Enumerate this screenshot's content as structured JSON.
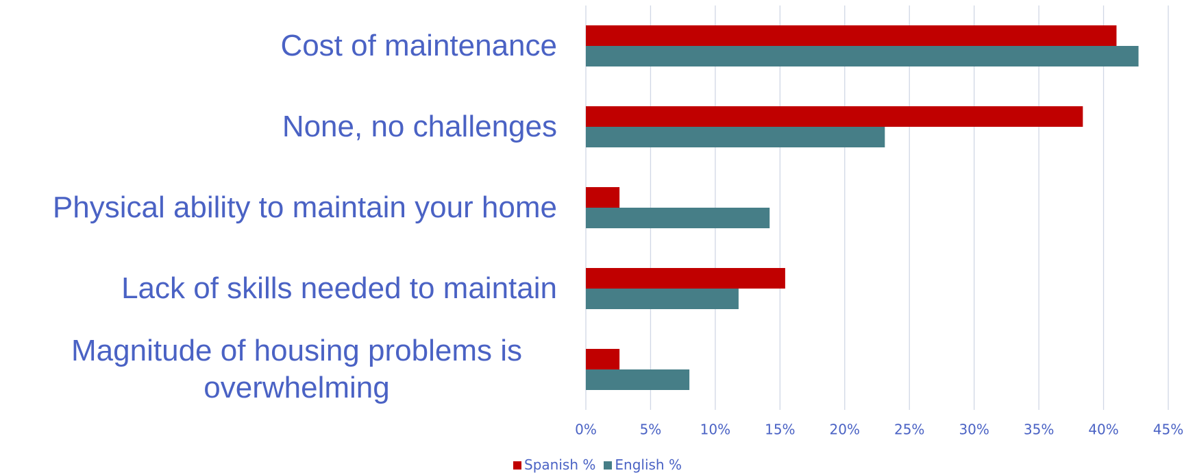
{
  "chart_data": {
    "type": "bar",
    "orientation": "horizontal",
    "categories": [
      "Cost of maintenance",
      "None, no challenges",
      "Physical ability to maintain your home",
      "Lack of skills needed to maintain",
      "Magnitude of housing problems is overwhelming"
    ],
    "series": [
      {
        "name": "Spanish %",
        "color": "#c00000",
        "values": [
          41.0,
          38.4,
          2.6,
          15.4,
          2.6
        ]
      },
      {
        "name": "English %",
        "color": "#467e87",
        "values": [
          42.7,
          23.1,
          14.2,
          11.8,
          8.0
        ]
      }
    ],
    "xlim": [
      0,
      45
    ],
    "xticks": [
      {
        "value": 0,
        "label": "0%"
      },
      {
        "value": 5,
        "label": "5%"
      },
      {
        "value": 10,
        "label": "10%"
      },
      {
        "value": 15,
        "label": "15%"
      },
      {
        "value": 20,
        "label": "20%"
      },
      {
        "value": 25,
        "label": "25%"
      },
      {
        "value": 30,
        "label": "30%"
      },
      {
        "value": 35,
        "label": "35%"
      },
      {
        "value": 40,
        "label": "40%"
      },
      {
        "value": 45,
        "label": "45%"
      }
    ],
    "grid": true,
    "legend": "bottom"
  }
}
